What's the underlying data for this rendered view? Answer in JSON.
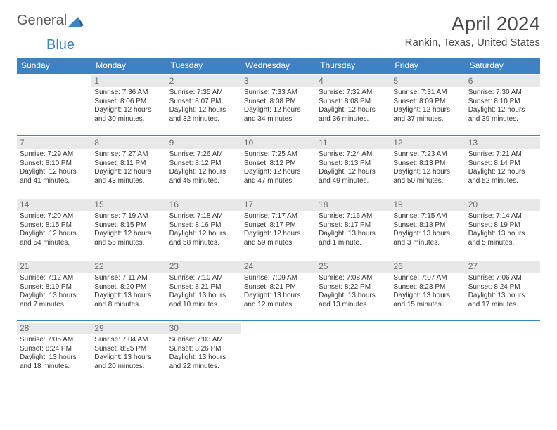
{
  "brand": {
    "general": "General",
    "blue": "Blue"
  },
  "title": "April 2024",
  "location": "Rankin, Texas, United States",
  "colors": {
    "header_bg": "#3d82c4",
    "header_fg": "#ffffff",
    "border": "#3d82c4",
    "daynum_bg": "#e8e8e8",
    "daynum_fg": "#6a6a6a",
    "text": "#333333",
    "logo_gray": "#5a5a5a",
    "logo_blue": "#3d82c4"
  },
  "typography": {
    "title_fontsize": 28,
    "location_fontsize": 15,
    "header_fontsize": 12,
    "daynum_fontsize": 12,
    "cell_fontsize": 10
  },
  "layout": {
    "columns": 7,
    "start_offset": 1,
    "days_in_month": 30
  },
  "weekdays": [
    "Sunday",
    "Monday",
    "Tuesday",
    "Wednesday",
    "Thursday",
    "Friday",
    "Saturday"
  ],
  "days": [
    {
      "n": 1,
      "sunrise": "7:36 AM",
      "sunset": "8:06 PM",
      "daylight": "12 hours and 30 minutes."
    },
    {
      "n": 2,
      "sunrise": "7:35 AM",
      "sunset": "8:07 PM",
      "daylight": "12 hours and 32 minutes."
    },
    {
      "n": 3,
      "sunrise": "7:33 AM",
      "sunset": "8:08 PM",
      "daylight": "12 hours and 34 minutes."
    },
    {
      "n": 4,
      "sunrise": "7:32 AM",
      "sunset": "8:08 PM",
      "daylight": "12 hours and 36 minutes."
    },
    {
      "n": 5,
      "sunrise": "7:31 AM",
      "sunset": "8:09 PM",
      "daylight": "12 hours and 37 minutes."
    },
    {
      "n": 6,
      "sunrise": "7:30 AM",
      "sunset": "8:10 PM",
      "daylight": "12 hours and 39 minutes."
    },
    {
      "n": 7,
      "sunrise": "7:29 AM",
      "sunset": "8:10 PM",
      "daylight": "12 hours and 41 minutes."
    },
    {
      "n": 8,
      "sunrise": "7:27 AM",
      "sunset": "8:11 PM",
      "daylight": "12 hours and 43 minutes."
    },
    {
      "n": 9,
      "sunrise": "7:26 AM",
      "sunset": "8:12 PM",
      "daylight": "12 hours and 45 minutes."
    },
    {
      "n": 10,
      "sunrise": "7:25 AM",
      "sunset": "8:12 PM",
      "daylight": "12 hours and 47 minutes."
    },
    {
      "n": 11,
      "sunrise": "7:24 AM",
      "sunset": "8:13 PM",
      "daylight": "12 hours and 49 minutes."
    },
    {
      "n": 12,
      "sunrise": "7:23 AM",
      "sunset": "8:13 PM",
      "daylight": "12 hours and 50 minutes."
    },
    {
      "n": 13,
      "sunrise": "7:21 AM",
      "sunset": "8:14 PM",
      "daylight": "12 hours and 52 minutes."
    },
    {
      "n": 14,
      "sunrise": "7:20 AM",
      "sunset": "8:15 PM",
      "daylight": "12 hours and 54 minutes."
    },
    {
      "n": 15,
      "sunrise": "7:19 AM",
      "sunset": "8:15 PM",
      "daylight": "12 hours and 56 minutes."
    },
    {
      "n": 16,
      "sunrise": "7:18 AM",
      "sunset": "8:16 PM",
      "daylight": "12 hours and 58 minutes."
    },
    {
      "n": 17,
      "sunrise": "7:17 AM",
      "sunset": "8:17 PM",
      "daylight": "12 hours and 59 minutes."
    },
    {
      "n": 18,
      "sunrise": "7:16 AM",
      "sunset": "8:17 PM",
      "daylight": "13 hours and 1 minute."
    },
    {
      "n": 19,
      "sunrise": "7:15 AM",
      "sunset": "8:18 PM",
      "daylight": "13 hours and 3 minutes."
    },
    {
      "n": 20,
      "sunrise": "7:14 AM",
      "sunset": "8:19 PM",
      "daylight": "13 hours and 5 minutes."
    },
    {
      "n": 21,
      "sunrise": "7:12 AM",
      "sunset": "8:19 PM",
      "daylight": "13 hours and 7 minutes."
    },
    {
      "n": 22,
      "sunrise": "7:11 AM",
      "sunset": "8:20 PM",
      "daylight": "13 hours and 8 minutes."
    },
    {
      "n": 23,
      "sunrise": "7:10 AM",
      "sunset": "8:21 PM",
      "daylight": "13 hours and 10 minutes."
    },
    {
      "n": 24,
      "sunrise": "7:09 AM",
      "sunset": "8:21 PM",
      "daylight": "13 hours and 12 minutes."
    },
    {
      "n": 25,
      "sunrise": "7:08 AM",
      "sunset": "8:22 PM",
      "daylight": "13 hours and 13 minutes."
    },
    {
      "n": 26,
      "sunrise": "7:07 AM",
      "sunset": "8:23 PM",
      "daylight": "13 hours and 15 minutes."
    },
    {
      "n": 27,
      "sunrise": "7:06 AM",
      "sunset": "8:24 PM",
      "daylight": "13 hours and 17 minutes."
    },
    {
      "n": 28,
      "sunrise": "7:05 AM",
      "sunset": "8:24 PM",
      "daylight": "13 hours and 18 minutes."
    },
    {
      "n": 29,
      "sunrise": "7:04 AM",
      "sunset": "8:25 PM",
      "daylight": "13 hours and 20 minutes."
    },
    {
      "n": 30,
      "sunrise": "7:03 AM",
      "sunset": "8:26 PM",
      "daylight": "13 hours and 22 minutes."
    }
  ],
  "labels": {
    "sunrise": "Sunrise:",
    "sunset": "Sunset:",
    "daylight": "Daylight:"
  }
}
